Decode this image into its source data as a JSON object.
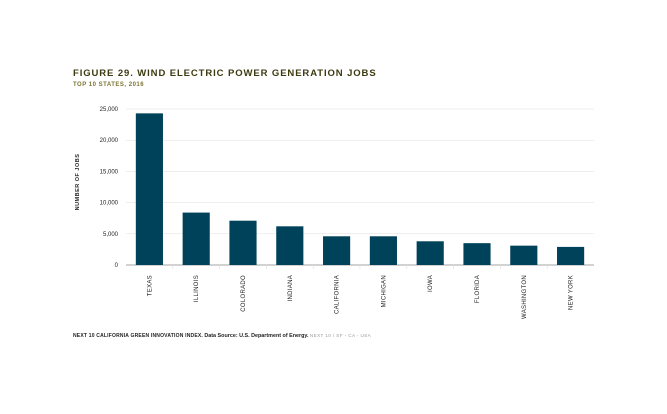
{
  "figure": {
    "title": "FIGURE 29. WIND ELECTRIC POWER GENERATION JOBS",
    "subtitle": "TOP 10 STATES, 2016"
  },
  "footer": {
    "brand": "NEXT 10 CALIFORNIA GREEN INNOVATION INDEX.",
    "source": "Data Source: U.S. Department of Energy.",
    "tagline": "NEXT 10  /  SF - CA - USA"
  },
  "colors": {
    "bar": "#00425a",
    "title": "#3d3a10",
    "subtitle": "#7a7530",
    "grid": "#dddddd",
    "axis": "#888888"
  },
  "chart_data": {
    "type": "bar",
    "title": "FIGURE 29. WIND ELECTRIC POWER GENERATION JOBS",
    "subtitle": "TOP 10 STATES, 2016",
    "xlabel": "",
    "ylabel": "NUMBER OF JOBS",
    "categories": [
      "TEXAS",
      "ILLINOIS",
      "COLORADO",
      "INDIANA",
      "CALIFORNIA",
      "MICHIGAN",
      "IOWA",
      "FLORIDA",
      "WASHINGTON",
      "NEW YORK"
    ],
    "values": [
      24300,
      8400,
      7100,
      6200,
      4600,
      4600,
      3800,
      3500,
      3100,
      2900
    ],
    "ylim": [
      0,
      25000
    ],
    "yticks": [
      0,
      5000,
      10000,
      15000,
      20000,
      25000
    ],
    "ytick_labels": [
      "0",
      "5,000",
      "10,000",
      "15,000",
      "20,000",
      "25,000"
    ],
    "grid": true,
    "legend": "none"
  }
}
